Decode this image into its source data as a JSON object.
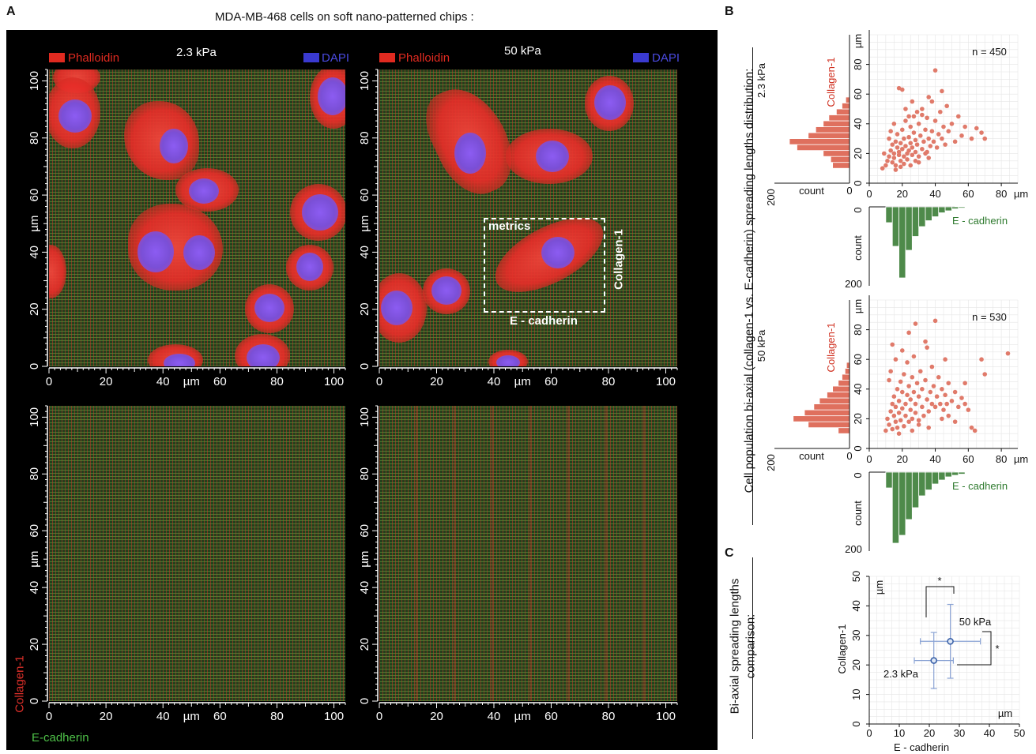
{
  "figure": {
    "panel_a_label": "A",
    "panel_b_label": "B",
    "panel_c_label": "C",
    "title": "MDA-MB-468 cells on soft nano-patterned chips :",
    "legend_phalloidin": "Phalloidin",
    "legend_dapi": "DAPI",
    "panel_2_3kpa": "2.3 kPa",
    "panel_50kpa": "50 kPa",
    "unit_um": "µm",
    "roi_metrics": "metrics",
    "roi_collagen": "Collagen-1",
    "roi_ecadherin": "E - cadherin",
    "bottom_collagen": "Collagen-1",
    "bottom_ecadherin": "E-cadherin",
    "axis_ticks": [
      "0",
      "20",
      "40",
      "60",
      "80",
      "100"
    ],
    "axis_ticks_x": [
      "0",
      "20",
      "40",
      "60",
      "80",
      "100"
    ],
    "b_vertical_title": "Cell population bi-axial (collagen-1 vs. E-cadherin) spreading lengths distribution:",
    "c_vertical_title_1": "Bi-axial spreading lengths",
    "c_vertical_title_2": "comparison:",
    "b_row1_label": "2.3 kPa",
    "b_row2_label": "50 kPa",
    "b_count": "count",
    "b_n1": "n = 450",
    "b_n2": "n = 530",
    "b_collagen": "Collagen-1",
    "b_ecadherin": "E - cadherin",
    "c_ylabel": "Collagen-1",
    "c_xlabel": "E - cadherin",
    "c_label_50": "50 kPa",
    "c_label_23": "2.3 kPa",
    "c_star": "*",
    "colors": {
      "scatter": "#e07a6a",
      "hist_red": "#df705e",
      "hist_green": "#4e8a4a",
      "collagen_text": "#d03020",
      "ecad_text": "#2e7a2e",
      "point_blue": "#3b62a8"
    }
  },
  "chart_data": [
    {
      "type": "scatter",
      "title": "2.3 kPa",
      "xlabel": "E - cadherin",
      "ylabel": "Collagen-1",
      "xlim": [
        0,
        100
      ],
      "ylim": [
        0,
        100
      ],
      "x_ticks": [
        "0",
        "20",
        "40",
        "60",
        "80"
      ],
      "y_ticks": [
        "0",
        "20",
        "40",
        "60",
        "80"
      ],
      "annotation": "n = 450",
      "points": [
        [
          8,
          10
        ],
        [
          10,
          12
        ],
        [
          11,
          15
        ],
        [
          12,
          18
        ],
        [
          13,
          22
        ],
        [
          14,
          14
        ],
        [
          14,
          26
        ],
        [
          15,
          20
        ],
        [
          15,
          17
        ],
        [
          16,
          28
        ],
        [
          16,
          12
        ],
        [
          17,
          24
        ],
        [
          17,
          33
        ],
        [
          18,
          19
        ],
        [
          18,
          21
        ],
        [
          19,
          15
        ],
        [
          19,
          27
        ],
        [
          20,
          36
        ],
        [
          20,
          23
        ],
        [
          21,
          18
        ],
        [
          21,
          30
        ],
        [
          22,
          25
        ],
        [
          22,
          42
        ],
        [
          23,
          20
        ],
        [
          23,
          16
        ],
        [
          24,
          31
        ],
        [
          24,
          22
        ],
        [
          25,
          27
        ],
        [
          25,
          38
        ],
        [
          26,
          19
        ],
        [
          26,
          24
        ],
        [
          27,
          34
        ],
        [
          27,
          45
        ],
        [
          28,
          21
        ],
        [
          28,
          29
        ],
        [
          29,
          26
        ],
        [
          30,
          40
        ],
        [
          30,
          18
        ],
        [
          31,
          32
        ],
        [
          32,
          23
        ],
        [
          32,
          50
        ],
        [
          33,
          28
        ],
        [
          34,
          36
        ],
        [
          35,
          21
        ],
        [
          35,
          44
        ],
        [
          36,
          30
        ],
        [
          37,
          25
        ],
        [
          38,
          55
        ],
        [
          38,
          35
        ],
        [
          39,
          28
        ],
        [
          40,
          42
        ],
        [
          41,
          24
        ],
        [
          42,
          33
        ],
        [
          43,
          48
        ],
        [
          44,
          30
        ],
        [
          45,
          38
        ],
        [
          46,
          26
        ],
        [
          47,
          52
        ],
        [
          48,
          35
        ],
        [
          50,
          40
        ],
        [
          52,
          28
        ],
        [
          54,
          45
        ],
        [
          56,
          32
        ],
        [
          58,
          38
        ],
        [
          62,
          30
        ],
        [
          65,
          37
        ],
        [
          68,
          34
        ],
        [
          70,
          30
        ],
        [
          18,
          64
        ],
        [
          20,
          63
        ],
        [
          32,
          46
        ],
        [
          36,
          58
        ],
        [
          44,
          62
        ],
        [
          40,
          76
        ],
        [
          26,
          55
        ],
        [
          29,
          48
        ],
        [
          12,
          30
        ],
        [
          13,
          35
        ],
        [
          9,
          20
        ],
        [
          15,
          40
        ],
        [
          22,
          50
        ],
        [
          24,
          45
        ],
        [
          34,
          20
        ],
        [
          28,
          15
        ],
        [
          16,
          9
        ],
        [
          19,
          11
        ],
        [
          21,
          13
        ],
        [
          25,
          12
        ],
        [
          30,
          14
        ],
        [
          36,
          17
        ]
      ],
      "hist_y": {
        "bins": [
          10,
          14,
          18,
          22,
          26,
          30,
          34,
          38,
          42,
          46,
          50,
          54
        ],
        "counts": [
          45,
          50,
          70,
          140,
          160,
          110,
          90,
          70,
          55,
          35,
          20,
          10
        ]
      },
      "hist_x": {
        "bins": [
          10,
          14,
          18,
          22,
          26,
          30,
          34,
          38,
          42,
          46,
          50,
          54
        ],
        "counts": [
          40,
          100,
          180,
          110,
          75,
          50,
          35,
          25,
          15,
          10,
          5,
          3
        ],
        "max_count": 200
      }
    },
    {
      "type": "scatter",
      "title": "50 kPa",
      "xlabel": "E - cadherin",
      "ylabel": "Collagen-1",
      "xlim": [
        0,
        100
      ],
      "ylim": [
        0,
        100
      ],
      "x_ticks": [
        "0",
        "20",
        "40",
        "60",
        "80"
      ],
      "y_ticks": [
        "0",
        "20",
        "40",
        "60",
        "80"
      ],
      "annotation": "n = 530",
      "points": [
        [
          10,
          12
        ],
        [
          11,
          20
        ],
        [
          12,
          16
        ],
        [
          13,
          25
        ],
        [
          14,
          30
        ],
        [
          14,
          13
        ],
        [
          15,
          22
        ],
        [
          15,
          35
        ],
        [
          16,
          18
        ],
        [
          16,
          28
        ],
        [
          17,
          40
        ],
        [
          17,
          14
        ],
        [
          18,
          24
        ],
        [
          18,
          32
        ],
        [
          19,
          45
        ],
        [
          19,
          19
        ],
        [
          20,
          27
        ],
        [
          20,
          38
        ],
        [
          21,
          15
        ],
        [
          21,
          50
        ],
        [
          22,
          30
        ],
        [
          22,
          22
        ],
        [
          23,
          36
        ],
        [
          23,
          58
        ],
        [
          24,
          18
        ],
        [
          24,
          42
        ],
        [
          25,
          26
        ],
        [
          25,
          33
        ],
        [
          26,
          48
        ],
        [
          26,
          20
        ],
        [
          27,
          38
        ],
        [
          27,
          62
        ],
        [
          28,
          24
        ],
        [
          28,
          30
        ],
        [
          29,
          44
        ],
        [
          30,
          35
        ],
        [
          30,
          19
        ],
        [
          31,
          52
        ],
        [
          32,
          28
        ],
        [
          32,
          40
        ],
        [
          33,
          22
        ],
        [
          34,
          46
        ],
        [
          35,
          33
        ],
        [
          35,
          68
        ],
        [
          36,
          25
        ],
        [
          37,
          38
        ],
        [
          38,
          30
        ],
        [
          38,
          55
        ],
        [
          39,
          42
        ],
        [
          40,
          28
        ],
        [
          41,
          35
        ],
        [
          42,
          48
        ],
        [
          43,
          30
        ],
        [
          44,
          40
        ],
        [
          45,
          26
        ],
        [
          46,
          36
        ],
        [
          47,
          30
        ],
        [
          48,
          44
        ],
        [
          50,
          32
        ],
        [
          52,
          38
        ],
        [
          54,
          28
        ],
        [
          56,
          34
        ],
        [
          58,
          30
        ],
        [
          60,
          26
        ],
        [
          62,
          14
        ],
        [
          64,
          12
        ],
        [
          70,
          50
        ],
        [
          84,
          64
        ],
        [
          68,
          60
        ],
        [
          58,
          44
        ],
        [
          46,
          60
        ],
        [
          34,
          72
        ],
        [
          24,
          78
        ],
        [
          28,
          84
        ],
        [
          40,
          86
        ],
        [
          14,
          70
        ],
        [
          12,
          46
        ],
        [
          13,
          52
        ],
        [
          16,
          60
        ],
        [
          20,
          66
        ],
        [
          44,
          20
        ],
        [
          36,
          14
        ],
        [
          26,
          12
        ],
        [
          18,
          10
        ],
        [
          30,
          16
        ],
        [
          48,
          22
        ],
        [
          52,
          18
        ]
      ],
      "hist_y": {
        "bins": [
          10,
          14,
          18,
          22,
          26,
          30,
          34,
          38,
          42,
          46,
          50,
          54
        ],
        "counts": [
          30,
          110,
          150,
          120,
          95,
          80,
          60,
          45,
          30,
          20,
          12,
          8
        ]
      },
      "hist_x": {
        "bins": [
          10,
          14,
          18,
          22,
          26,
          30,
          34,
          38,
          42,
          46,
          50,
          54
        ],
        "counts": [
          40,
          180,
          160,
          120,
          90,
          60,
          45,
          30,
          20,
          12,
          8,
          5
        ],
        "max_count": 200
      }
    },
    {
      "type": "scatter",
      "title": "Bi-axial spreading lengths comparison",
      "xlabel": "E - cadherin",
      "ylabel": "Collagen-1",
      "xlim": [
        0,
        50
      ],
      "ylim": [
        0,
        50
      ],
      "x_ticks": [
        "0",
        "10",
        "20",
        "30",
        "40",
        "50"
      ],
      "y_ticks": [
        "0",
        "10",
        "20",
        "30",
        "40",
        "50"
      ],
      "points": [
        {
          "label": "2.3 kPa",
          "x": 21.5,
          "y": 21.5,
          "xerr": 6.5,
          "yerr": 9.5
        },
        {
          "label": "50 kPa",
          "x": 27,
          "y": 28,
          "xerr": 10,
          "yerr": 12.5
        }
      ],
      "annotation": "*"
    }
  ]
}
